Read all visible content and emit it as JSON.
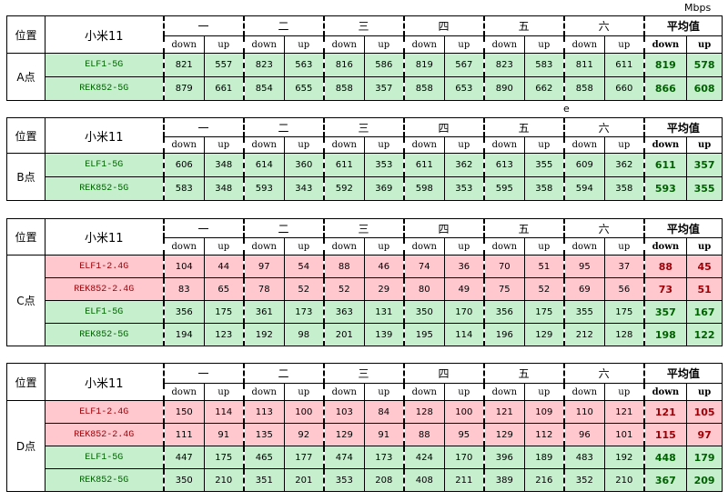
{
  "unit_label": "Mbps",
  "stray_mark": "e",
  "header": {
    "position": "位置",
    "phone": "小米11",
    "rounds": [
      "一",
      "二",
      "三",
      "四",
      "五",
      "六"
    ],
    "average": "平均值",
    "down": "down",
    "up": "up"
  },
  "blocks": [
    {
      "location": "A点",
      "rows": [
        {
          "device": "ELF1-5G",
          "color": "green",
          "values": [
            821,
            557,
            823,
            563,
            816,
            586,
            819,
            567,
            823,
            583,
            811,
            611
          ],
          "avg_down": 819,
          "avg_up": 578
        },
        {
          "device": "REK852-5G",
          "color": "green",
          "values": [
            879,
            661,
            854,
            655,
            858,
            357,
            858,
            653,
            890,
            662,
            858,
            660
          ],
          "avg_down": 866,
          "avg_up": 608
        }
      ]
    },
    {
      "location": "B点",
      "rows": [
        {
          "device": "ELF1-5G",
          "color": "green",
          "values": [
            606,
            348,
            614,
            360,
            611,
            353,
            611,
            362,
            613,
            355,
            609,
            362
          ],
          "avg_down": 611,
          "avg_up": 357
        },
        {
          "device": "REK852-5G",
          "color": "green",
          "values": [
            583,
            348,
            593,
            343,
            592,
            369,
            598,
            353,
            595,
            358,
            594,
            358
          ],
          "avg_down": 593,
          "avg_up": 355
        }
      ]
    },
    {
      "location": "C点",
      "rows": [
        {
          "device": "ELF1-2.4G",
          "color": "red",
          "values": [
            104,
            44,
            97,
            54,
            88,
            46,
            74,
            36,
            70,
            51,
            95,
            37
          ],
          "avg_down": 88,
          "avg_up": 45
        },
        {
          "device": "REK852-2.4G",
          "color": "red",
          "values": [
            83,
            65,
            78,
            52,
            52,
            29,
            80,
            49,
            75,
            52,
            69,
            56
          ],
          "avg_down": 73,
          "avg_up": 51
        },
        {
          "device": "ELF1-5G",
          "color": "green",
          "values": [
            356,
            175,
            361,
            173,
            363,
            131,
            350,
            170,
            356,
            175,
            355,
            175
          ],
          "avg_down": 357,
          "avg_up": 167
        },
        {
          "device": "REK852-5G",
          "color": "green",
          "values": [
            194,
            123,
            192,
            98,
            201,
            139,
            195,
            114,
            196,
            129,
            212,
            128
          ],
          "avg_down": 198,
          "avg_up": 122
        }
      ]
    },
    {
      "location": "D点",
      "rows": [
        {
          "device": "ELF1-2.4G",
          "color": "red",
          "values": [
            150,
            114,
            113,
            100,
            103,
            84,
            128,
            100,
            121,
            109,
            110,
            121
          ],
          "avg_down": 121,
          "avg_up": 105
        },
        {
          "device": "REK852-2.4G",
          "color": "red",
          "values": [
            111,
            91,
            135,
            92,
            129,
            91,
            88,
            95,
            129,
            112,
            96,
            101
          ],
          "avg_down": 115,
          "avg_up": 97
        },
        {
          "device": "ELF1-5G",
          "color": "green",
          "values": [
            447,
            175,
            465,
            177,
            474,
            173,
            424,
            170,
            396,
            189,
            483,
            192
          ],
          "avg_down": 448,
          "avg_up": 179
        },
        {
          "device": "REK852-5G",
          "color": "green",
          "values": [
            350,
            210,
            351,
            201,
            353,
            208,
            408,
            211,
            389,
            216,
            352,
            210
          ],
          "avg_down": 367,
          "avg_up": 209
        }
      ]
    }
  ]
}
